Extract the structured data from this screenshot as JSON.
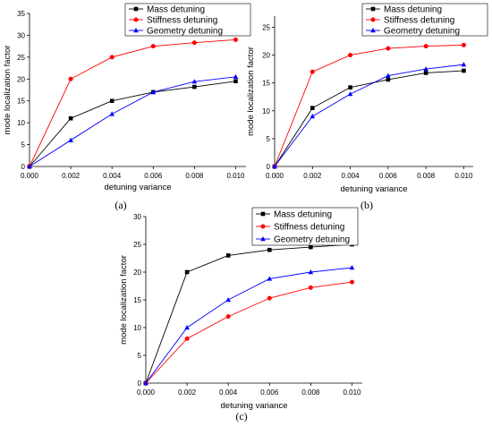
{
  "colors": {
    "mass": "#000000",
    "stiffness": "#ff0000",
    "geometry": "#0000ff",
    "axis": "#000000"
  },
  "chart_data": [
    {
      "type": "line",
      "panel_label": "(a)",
      "xlabel": "detuning variance",
      "ylabel": "mode localization factor",
      "x": [
        0.0,
        0.002,
        0.004,
        0.006,
        0.008,
        0.01
      ],
      "x_ticks": [
        "0.000",
        "0.002",
        "0.004",
        "0.006",
        "0.008",
        "0.010"
      ],
      "y_ticks": [
        "0",
        "5",
        "10",
        "15",
        "20",
        "25",
        "30",
        "35"
      ],
      "xlim": [
        0,
        0.0105
      ],
      "ylim": [
        0,
        35
      ],
      "grid": false,
      "legend_position": "top-right",
      "series": [
        {
          "name": "Mass detuning",
          "marker": "square",
          "color": "#000000",
          "values": [
            0,
            11,
            15,
            17,
            18.2,
            19.5
          ]
        },
        {
          "name": "Stiffness detuning",
          "marker": "circle",
          "color": "#ff0000",
          "values": [
            0,
            20,
            25,
            27.5,
            28.3,
            29
          ]
        },
        {
          "name": "Geometry detuning",
          "marker": "triangle",
          "color": "#0000ff",
          "values": [
            0,
            6,
            12,
            17,
            19.4,
            20.5
          ]
        }
      ]
    },
    {
      "type": "line",
      "panel_label": "(b)",
      "xlabel": "detuning variance",
      "ylabel": "mode localization factor",
      "x": [
        0.0,
        0.002,
        0.004,
        0.006,
        0.008,
        0.01
      ],
      "x_ticks": [
        "0.000",
        "0.002",
        "0.004",
        "0.006",
        "0.008",
        "0.010"
      ],
      "y_ticks": [
        "0",
        "5",
        "10",
        "15",
        "20",
        "25"
      ],
      "xlim": [
        0,
        0.0105
      ],
      "ylim": [
        0,
        27
      ],
      "grid": false,
      "legend_position": "top-right",
      "series": [
        {
          "name": "Mass   detuning",
          "marker": "square",
          "color": "#000000",
          "values": [
            0,
            10.5,
            14.2,
            15.6,
            16.8,
            17.2
          ]
        },
        {
          "name": "Stiffness  detuning",
          "marker": "circle",
          "color": "#ff0000",
          "values": [
            0,
            17,
            20,
            21.2,
            21.6,
            21.8
          ]
        },
        {
          "name": "Geometry detuning",
          "marker": "triangle",
          "color": "#0000ff",
          "values": [
            0,
            9,
            13,
            16.3,
            17.5,
            18.3
          ]
        }
      ]
    },
    {
      "type": "line",
      "panel_label": "(c)",
      "xlabel": "detuning variance",
      "ylabel": "mode localization factor",
      "x": [
        0.0,
        0.002,
        0.004,
        0.006,
        0.008,
        0.01
      ],
      "x_ticks": [
        "0.000",
        "0.002",
        "0.004",
        "0.006",
        "0.008",
        "0.010"
      ],
      "y_ticks": [
        "0",
        "5",
        "10",
        "15",
        "20",
        "25",
        "30"
      ],
      "xlim": [
        0,
        0.0105
      ],
      "ylim": [
        0,
        30
      ],
      "grid": false,
      "legend_position": "top-right",
      "series": [
        {
          "name": "Mass detuning",
          "marker": "square",
          "color": "#000000",
          "values": [
            0,
            20,
            23,
            24,
            24.5,
            25
          ]
        },
        {
          "name": "Stiffness detuning",
          "marker": "circle",
          "color": "#ff0000",
          "values": [
            0,
            8,
            12,
            15.3,
            17.2,
            18.2
          ]
        },
        {
          "name": "Geometry detuning",
          "marker": "triangle",
          "color": "#0000ff",
          "values": [
            0,
            10,
            15,
            18.8,
            20,
            20.8
          ]
        }
      ]
    }
  ]
}
